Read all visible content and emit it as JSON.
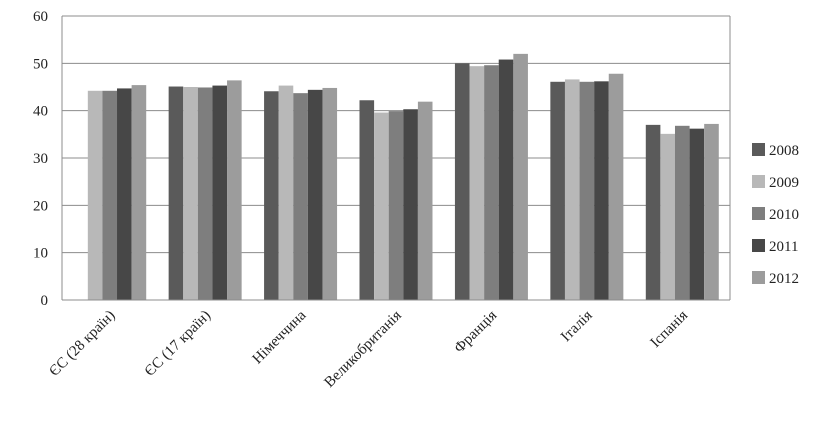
{
  "chart_data": {
    "type": "bar",
    "title": "",
    "xlabel": "",
    "ylabel": "",
    "ylim": [
      0,
      60
    ],
    "yticks": [
      "0",
      "10",
      "20",
      "30",
      "40",
      "50",
      "60"
    ],
    "grid": true,
    "legend_position": "right",
    "categories": [
      "ЄС (28 країн)",
      "ЄС (17 країн)",
      "Німеччина",
      "Великобританія",
      "Франція",
      "Італія",
      "Іспанія"
    ],
    "series": [
      {
        "name": "2008",
        "color": "#5a5a5a",
        "values": [
          null,
          45.1,
          44.1,
          42.2,
          50.0,
          46.1,
          37.0
        ]
      },
      {
        "name": "2009",
        "color": "#b8b8b8",
        "values": [
          44.2,
          45.0,
          45.3,
          39.6,
          49.4,
          46.6,
          35.1
        ]
      },
      {
        "name": "2010",
        "color": "#7e7e7e",
        "values": [
          44.2,
          44.9,
          43.7,
          39.9,
          49.6,
          46.1,
          36.8
        ]
      },
      {
        "name": "2011",
        "color": "#474747",
        "values": [
          44.7,
          45.3,
          44.4,
          40.3,
          50.8,
          46.2,
          36.2
        ]
      },
      {
        "name": "2012",
        "color": "#9c9c9c",
        "values": [
          45.4,
          46.4,
          44.8,
          41.9,
          52.0,
          47.8,
          37.2
        ]
      }
    ]
  }
}
